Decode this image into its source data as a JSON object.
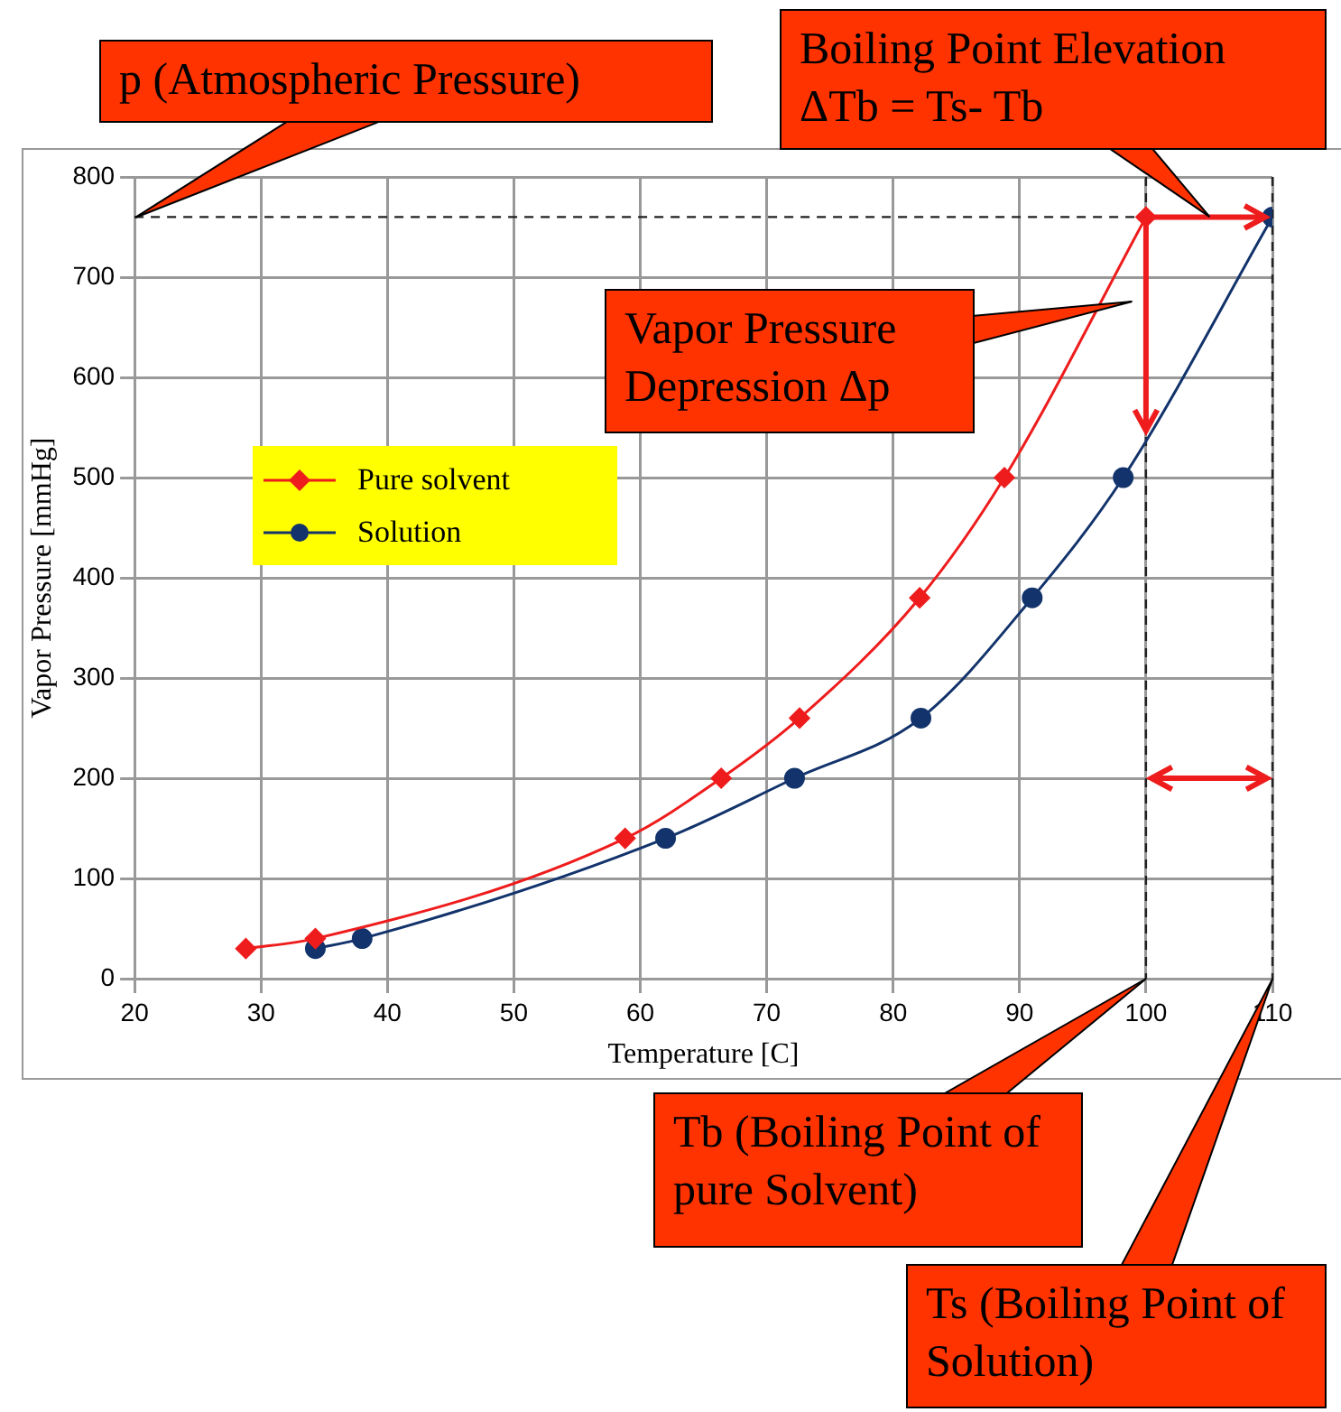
{
  "chart_data": {
    "type": "line",
    "xlabel": "Temperature [C]",
    "ylabel": "Vapor Pressure [mmHg]",
    "xlim": [
      20,
      110
    ],
    "xticks": [
      20,
      30,
      40,
      50,
      60,
      70,
      80,
      90,
      100,
      110
    ],
    "ylim": [
      0,
      800
    ],
    "yticks": [
      0,
      100,
      200,
      300,
      400,
      500,
      600,
      700,
      800
    ],
    "grid": true,
    "legend": "top left",
    "series": [
      {
        "name": "Pure solvent",
        "color": "#ee1c1c",
        "marker": "diamond",
        "x": [
          28.8,
          34.3,
          58.8,
          66.4,
          72.6,
          82.1,
          88.8,
          100
        ],
        "values": [
          30,
          40,
          140,
          200,
          260,
          380,
          500,
          760
        ]
      },
      {
        "name": "Solution",
        "color": "#12336b",
        "marker": "circle",
        "x": [
          34.3,
          38,
          62,
          72.2,
          82.2,
          91,
          98.2,
          110
        ],
        "values": [
          30,
          40,
          140,
          200,
          260,
          380,
          500,
          760
        ]
      }
    ],
    "ref_lines": [
      {
        "axis": "y",
        "value": 760,
        "line_style": "dashed",
        "color": "#222222"
      },
      {
        "axis": "x",
        "value": 100,
        "line_style": "dashed",
        "color": "#222222"
      },
      {
        "axis": "x",
        "value": 110,
        "line_style": "dashed",
        "color": "#222222"
      }
    ],
    "annotations": [
      {
        "text": "p (Atmospheric Pressure)",
        "x": 20,
        "y": 760
      },
      {
        "text": "Boiling Point Elevation ΔTb = Ts- Tb",
        "x": 105,
        "y": 760
      },
      "Vapor Pressure Depression Δp",
      "Tb (Boiling Point of pure Solvent)",
      {
        "text": "Ts (Boiling Point of Solution)",
        "x": 110,
        "y": 0
      }
    ]
  }
}
